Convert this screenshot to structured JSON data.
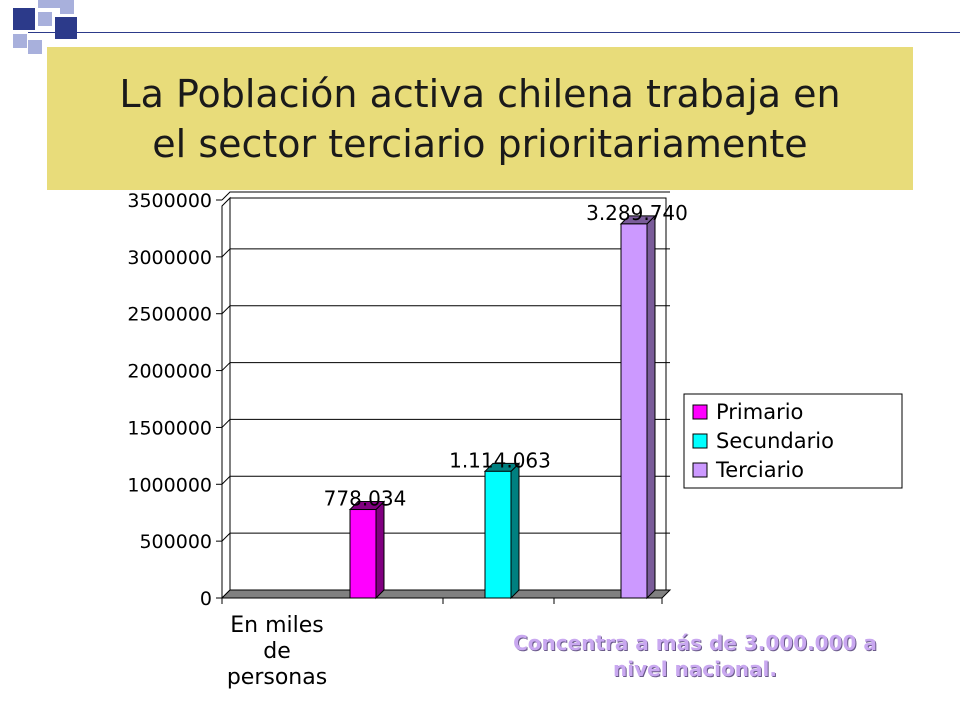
{
  "slide": {
    "title_lines": [
      "La Población activa chilena trabaja en",
      "el sector terciario prioritariamente"
    ],
    "note_lines": [
      "Concentra a más de 3.000.000 a",
      "nivel nacional."
    ],
    "colors": {
      "title_bg": "#e8dc7a",
      "deco_dark": "#2c3a8a",
      "deco_light": "#a8b0dc",
      "note_text": "#c9a8f0"
    }
  },
  "chart_data": {
    "type": "bar",
    "categories": [
      "En miles de personas"
    ],
    "category_label_lines": [
      "En miles",
      "de",
      "personas"
    ],
    "series": [
      {
        "name": "Primario",
        "values": [
          778034
        ],
        "data_label": "778.034",
        "color": "#ff00ff",
        "side_color": "#800080"
      },
      {
        "name": "Secundario",
        "values": [
          1114063
        ],
        "data_label": "1.114.063",
        "color": "#00ffff",
        "side_color": "#008080"
      },
      {
        "name": "Terciario",
        "values": [
          3289740
        ],
        "data_label": "3.289.740",
        "color": "#cc99ff",
        "side_color": "#7a5c99"
      }
    ],
    "ylim": [
      0,
      3500000
    ],
    "yticks": [
      "0",
      "500000",
      "1000000",
      "1500000",
      "2000000",
      "2500000",
      "3000000",
      "3500000"
    ],
    "legend_position": "right",
    "grid": true,
    "three_d": true
  }
}
